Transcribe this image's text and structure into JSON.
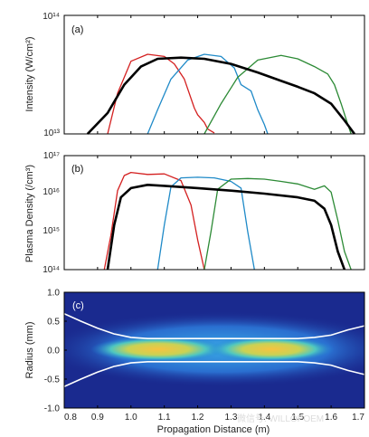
{
  "chart_data": [
    {
      "panel": "(a)",
      "type": "line",
      "title": "",
      "xlabel": "",
      "ylabel": "Intensity (W/cm²)",
      "xlim": [
        0.8,
        1.7
      ],
      "ylim": [
        10000000000000.0,
        100000000000000.0
      ],
      "yscale": "log",
      "y_tick_labels": [
        "10¹³",
        "10¹⁴"
      ],
      "series": [
        {
          "color": "#d42020",
          "x": [
            0.93,
            0.96,
            1.0,
            1.05,
            1.1,
            1.13,
            1.16,
            1.19,
            1.2,
            1.22,
            1.23,
            1.25
          ],
          "y": [
            10000000000000.0,
            22000000000000.0,
            41000000000000.0,
            47000000000000.0,
            45000000000000.0,
            39000000000000.0,
            29000000000000.0,
            16500000000000.0,
            14500000000000.0,
            12500000000000.0,
            11000000000000.0,
            10200000000000.0
          ]
        },
        {
          "color": "#1f8ac8",
          "x": [
            1.05,
            1.08,
            1.12,
            1.17,
            1.22,
            1.27,
            1.31,
            1.33,
            1.36,
            1.38,
            1.4,
            1.41
          ],
          "y": [
            10000000000000.0,
            16000000000000.0,
            29000000000000.0,
            42000000000000.0,
            47000000000000.0,
            45000000000000.0,
            36000000000000.0,
            26000000000000.0,
            23000000000000.0,
            16000000000000.0,
            12000000000000.0,
            10000000000000.0
          ]
        },
        {
          "color": "#2c8a35",
          "x": [
            1.22,
            1.27,
            1.32,
            1.38,
            1.45,
            1.5,
            1.55,
            1.59,
            1.61,
            1.63,
            1.65,
            1.66
          ],
          "y": [
            10000000000000.0,
            18000000000000.0,
            30000000000000.0,
            42000000000000.0,
            46000000000000.0,
            43000000000000.0,
            37000000000000.0,
            32000000000000.0,
            26000000000000.0,
            18000000000000.0,
            12000000000000.0,
            10000000000000.0
          ]
        },
        {
          "color": "#000000",
          "x": [
            0.87,
            0.93,
            0.98,
            1.03,
            1.08,
            1.15,
            1.22,
            1.3,
            1.38,
            1.45,
            1.5,
            1.55,
            1.6,
            1.64,
            1.67
          ],
          "y": [
            10000000000000.0,
            15000000000000.0,
            26000000000000.0,
            37000000000000.0,
            43000000000000.0,
            44000000000000.0,
            43000000000000.0,
            39000000000000.0,
            33000000000000.0,
            28000000000000.0,
            25000000000000.0,
            22000000000000.0,
            18000000000000.0,
            13000000000000.0,
            10000000000000.0
          ]
        }
      ]
    },
    {
      "panel": "(b)",
      "type": "line",
      "title": "",
      "xlabel": "",
      "ylabel": "Plasma Density (/cm³)",
      "xlim": [
        0.8,
        1.7
      ],
      "ylim": [
        100000000000000.0,
        1e+17
      ],
      "yscale": "log",
      "y_tick_labels": [
        "10¹⁴",
        "10¹⁵",
        "10¹⁶",
        "10¹⁷"
      ],
      "series": [
        {
          "color": "#d42020",
          "x": [
            0.92,
            0.94,
            0.96,
            0.98,
            1.0,
            1.05,
            1.1,
            1.15,
            1.18,
            1.2,
            1.22
          ],
          "y": [
            100000000000000.0,
            800000000000000.0,
            1.2e+16,
            3e+16,
            3.6e+16,
            3.2e+16,
            3.3e+16,
            2.2e+16,
            5000000000000000.0,
            600000000000000.0,
            100000000000000.0
          ]
        },
        {
          "color": "#1f8ac8",
          "x": [
            1.08,
            1.1,
            1.12,
            1.15,
            1.2,
            1.25,
            1.3,
            1.33,
            1.35,
            1.37
          ],
          "y": [
            100000000000000.0,
            1500000000000000.0,
            1.5e+16,
            2.6e+16,
            2.7e+16,
            2.6e+16,
            2.1e+16,
            1.4e+16,
            1000000000000000.0,
            100000000000000.0
          ]
        },
        {
          "color": "#2c8a35",
          "x": [
            1.22,
            1.24,
            1.26,
            1.3,
            1.35,
            1.4,
            1.45,
            1.5,
            1.55,
            1.58,
            1.6,
            1.62,
            1.64,
            1.66
          ],
          "y": [
            100000000000000.0,
            1000000000000000.0,
            1.3e+16,
            2.4e+16,
            2.5e+16,
            2.4e+16,
            2.1e+16,
            1.8e+16,
            1.3e+16,
            1.6e+16,
            1.1e+16,
            2000000000000000.0,
            300000000000000.0,
            100000000000000.0
          ]
        },
        {
          "color": "#000000",
          "x": [
            0.93,
            0.95,
            0.97,
            1.0,
            1.05,
            1.1,
            1.2,
            1.3,
            1.4,
            1.5,
            1.55,
            1.58,
            1.6,
            1.62,
            1.64
          ],
          "y": [
            100000000000000.0,
            1500000000000000.0,
            8000000000000000.0,
            1.4e+16,
            1.7e+16,
            1.6e+16,
            1.4e+16,
            1.2e+16,
            1e+16,
            8000000000000000.0,
            6500000000000000.0,
            4000000000000000.0,
            1500000000000000.0,
            300000000000000.0,
            100000000000000.0
          ]
        }
      ]
    },
    {
      "panel": "(c)",
      "type": "heatmap",
      "title": "",
      "xlabel": "Propagation Distance (m)",
      "ylabel": "Radius (mm)",
      "xlim": [
        0.8,
        1.7
      ],
      "ylim": [
        -1.0,
        1.0
      ],
      "x_tick_labels": [
        "0.8",
        "0.9",
        "1.0",
        "1.1",
        "1.2",
        "1.3",
        "1.4",
        "1.5",
        "1.6",
        "1.7"
      ],
      "y_tick_labels": [
        "-1.0",
        "-0.5",
        "0.0",
        "0.5",
        "1.0"
      ],
      "boundary_color": "#ffffff",
      "boundary": {
        "x": [
          0.8,
          0.85,
          0.9,
          0.95,
          1.0,
          1.05,
          1.1,
          1.2,
          1.3,
          1.4,
          1.5,
          1.55,
          1.6,
          1.65,
          1.7
        ],
        "r": [
          0.63,
          0.5,
          0.38,
          0.28,
          0.22,
          0.2,
          0.2,
          0.2,
          0.2,
          0.2,
          0.2,
          0.22,
          0.26,
          0.35,
          0.42
        ]
      },
      "colormap": [
        "#1a2a8f",
        "#1f7fd6",
        "#38c7d8",
        "#9fd66a",
        "#f4c542"
      ]
    }
  ],
  "watermark": "微信号: WILLOPOEM"
}
